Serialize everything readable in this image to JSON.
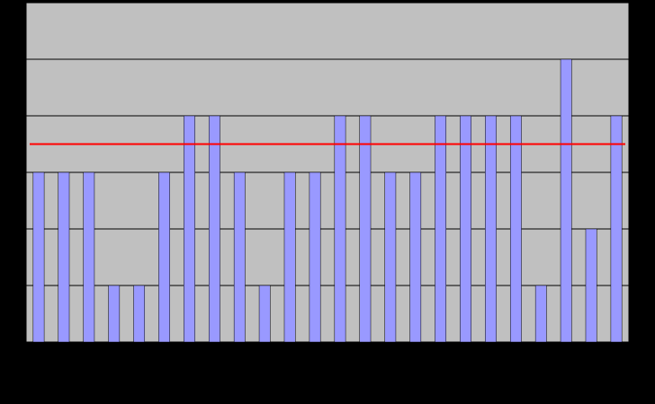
{
  "chart_data": {
    "type": "bar",
    "categories": [
      null,
      null,
      null,
      null,
      null,
      null,
      null,
      null,
      null,
      null,
      null,
      null,
      null,
      null,
      null,
      null,
      null,
      null,
      null,
      null,
      null,
      null,
      null,
      null
    ],
    "values": [
      3,
      3,
      3,
      1,
      1,
      3,
      4,
      4,
      3,
      1,
      3,
      3,
      4,
      4,
      3,
      3,
      4,
      4,
      4,
      4,
      1,
      5,
      2,
      4
    ],
    "color": "#9999ff",
    "ylim": [
      0,
      6
    ],
    "yticks": [
      0,
      1,
      2,
      3,
      4,
      5,
      6
    ],
    "grid": true,
    "reference_line": {
      "value": 3.5,
      "color": "#ff0000"
    }
  }
}
